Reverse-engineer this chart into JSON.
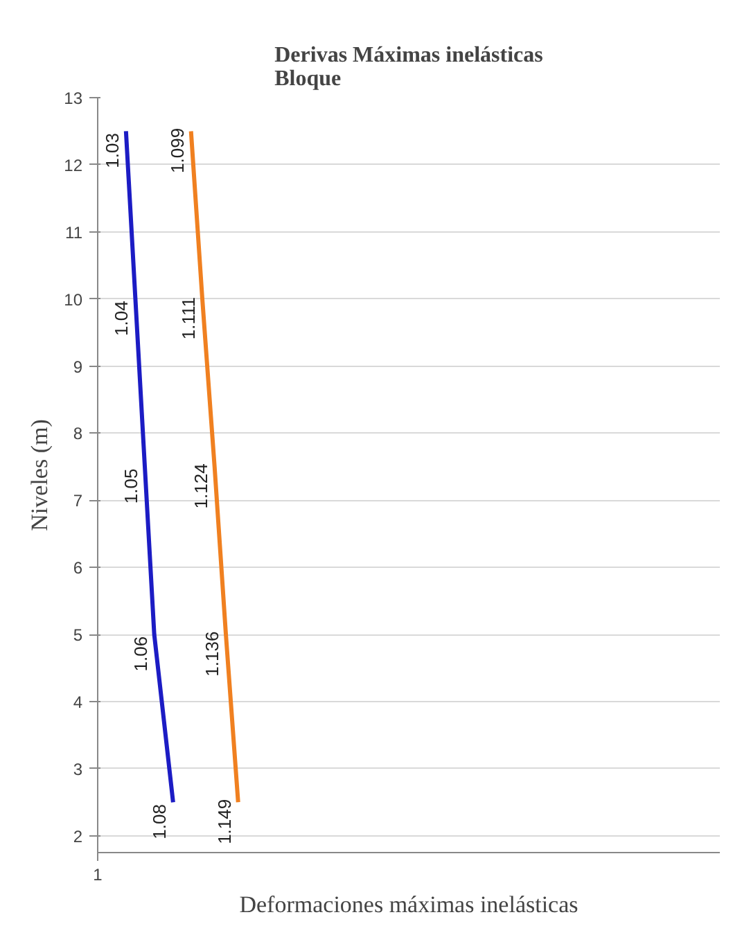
{
  "chart_data": {
    "type": "line",
    "orientation": "horizontal",
    "title": "Derivas Máximas inelásticas\nBloque",
    "xlabel": "Deformaciones máximas inelásticas",
    "ylabel": "Niveles (m)",
    "series": [
      {
        "color": "#1c1cc4",
        "x": [
          12.5,
          10,
          7.5,
          5,
          2.5
        ],
        "values": [
          1.03,
          1.04,
          1.05,
          1.06,
          1.08
        ]
      },
      {
        "color": "#f08020",
        "x": [
          12.5,
          10,
          7.5,
          5,
          2.5
        ],
        "values": [
          1.099,
          1.111,
          1.124,
          1.136,
          1.149
        ]
      }
    ],
    "data_labels": true,
    "annotations": [
      "1"
    ],
    "xlim": [
      1,
      1.66
    ],
    "ylim": [
      1.75,
      13
    ],
    "yticks": [
      2,
      3,
      4,
      5,
      6,
      7,
      8,
      9,
      10,
      11,
      12,
      13
    ],
    "grid": "y",
    "marker": "none",
    "line_style": "solid"
  }
}
